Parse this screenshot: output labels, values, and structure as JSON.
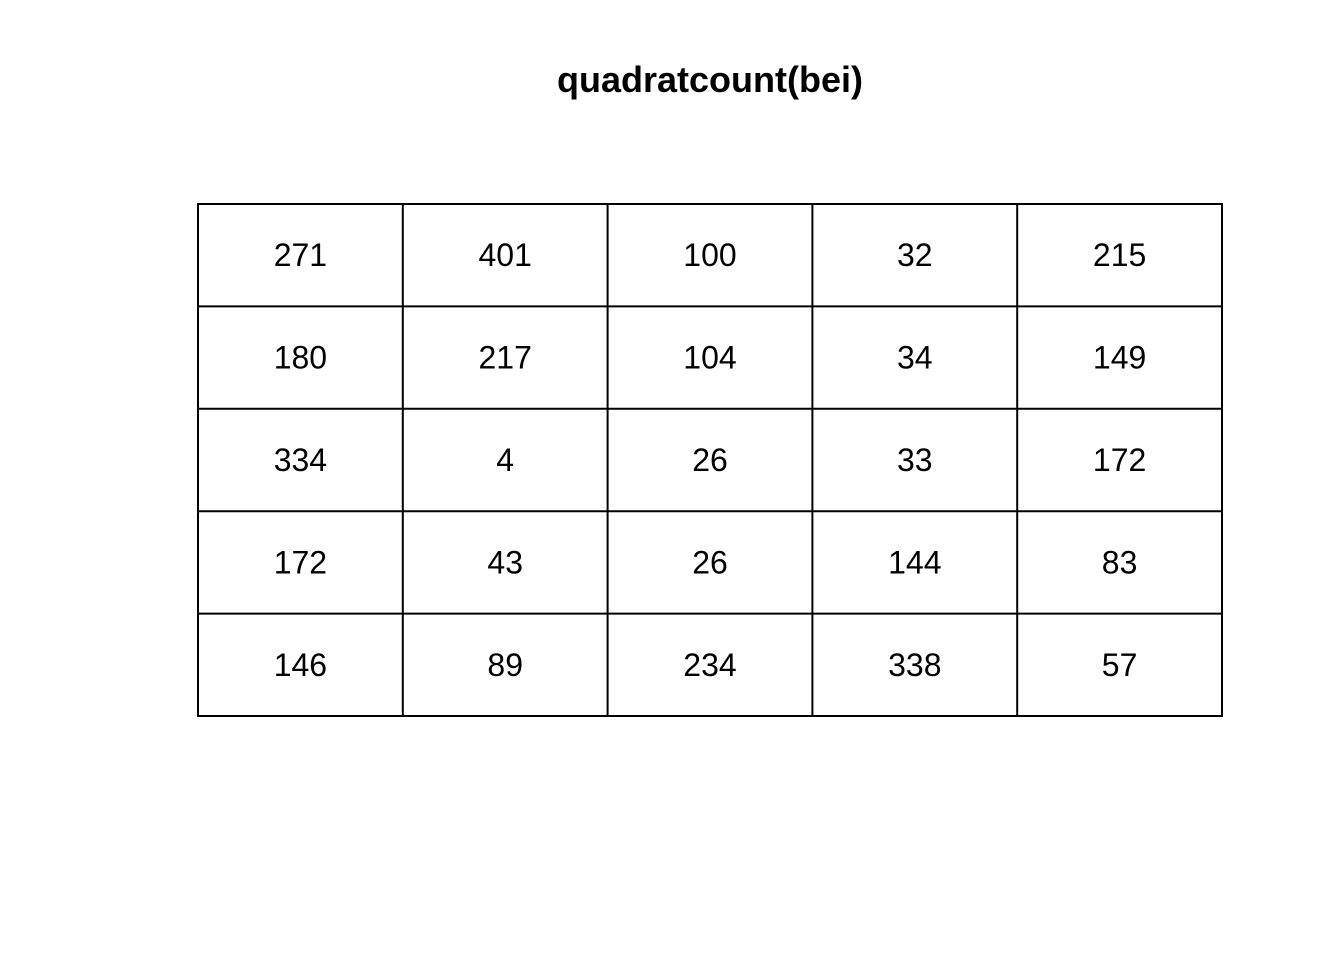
{
  "chart_data": {
    "type": "table",
    "title": "quadratcount(bei)",
    "rows": 5,
    "cols": 5,
    "counts": [
      [
        271,
        401,
        100,
        32,
        215
      ],
      [
        180,
        217,
        104,
        34,
        149
      ],
      [
        334,
        4,
        26,
        33,
        172
      ],
      [
        172,
        43,
        26,
        144,
        83
      ],
      [
        146,
        89,
        234,
        338,
        57
      ]
    ],
    "colors": {
      "line": "#000000",
      "text": "#000000",
      "background": "#ffffff"
    }
  }
}
